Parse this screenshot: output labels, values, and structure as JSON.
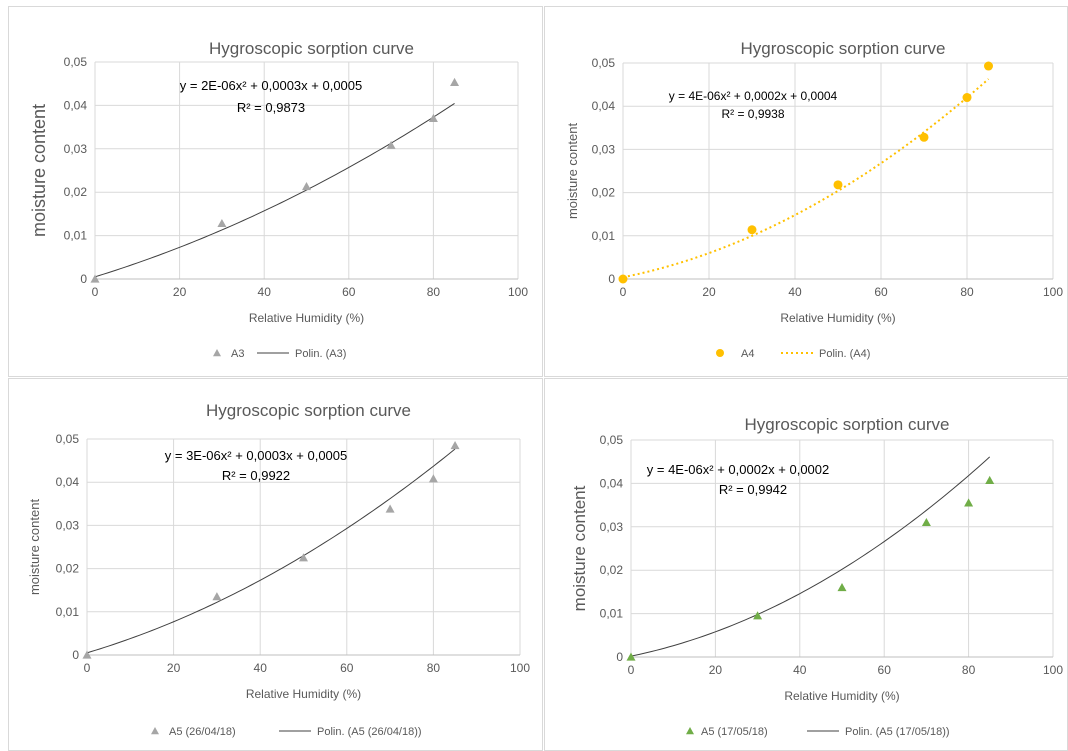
{
  "chart_data": [
    {
      "type": "scatter",
      "title": "Hygroscopic sorption curve",
      "xlabel": "Relative Humidity (%)",
      "ylabel": "moisture content",
      "xlim": [
        0,
        100
      ],
      "ylim": [
        0,
        0.05
      ],
      "x_ticks": [
        "0",
        "20",
        "40",
        "60",
        "80",
        "100"
      ],
      "y_ticks": [
        "0",
        "0,01",
        "0,02",
        "0,03",
        "0,04",
        "0,05"
      ],
      "grid": true,
      "legend_position": "bottom",
      "series": [
        {
          "name": "A3",
          "marker": "triangle",
          "color": "#a6a6a6",
          "x": [
            0,
            30,
            50,
            70,
            80,
            85
          ],
          "y": [
            0.0,
            0.0128,
            0.0213,
            0.0308,
            0.037,
            0.0453
          ]
        }
      ],
      "trendline": {
        "name": "Polin. (A3)",
        "style": "solid",
        "color": "#404040",
        "coefficients": [
          2e-06,
          0.0003,
          0.0005
        ],
        "equation": "y = 2E-06x² + 0,0003x + 0,0005",
        "r2": "R² = 0,9873"
      }
    },
    {
      "type": "scatter",
      "title": "Hygroscopic sorption curve",
      "xlabel": "Relative Humidity (%)",
      "ylabel": "moisture content",
      "xlim": [
        0,
        100
      ],
      "ylim": [
        0,
        0.05
      ],
      "x_ticks": [
        "0",
        "20",
        "40",
        "60",
        "80",
        "100"
      ],
      "y_ticks": [
        "0",
        "0,01",
        "0,02",
        "0,03",
        "0,04",
        "0,05"
      ],
      "grid": true,
      "legend_position": "bottom",
      "series": [
        {
          "name": "A4",
          "marker": "circle",
          "color": "#ffc000",
          "x": [
            0,
            30,
            50,
            70,
            80,
            85
          ],
          "y": [
            0.0,
            0.0114,
            0.0218,
            0.0328,
            0.042,
            0.0493
          ]
        }
      ],
      "trendline": {
        "name": "Polin. (A4)",
        "style": "dotted",
        "color": "#ffc000",
        "coefficients": [
          4e-06,
          0.0002,
          0.0004
        ],
        "equation": "y = 4E-06x² + 0,0002x + 0,0004",
        "r2": "R² = 0,9938"
      }
    },
    {
      "type": "scatter",
      "title": "Hygroscopic sorption curve",
      "xlabel": "Relative Humidity (%)",
      "ylabel": "moisture content",
      "xlim": [
        0,
        100
      ],
      "ylim": [
        0,
        0.05
      ],
      "x_ticks": [
        "0",
        "20",
        "40",
        "60",
        "80",
        "100"
      ],
      "y_ticks": [
        "0",
        "0,01",
        "0,02",
        "0,03",
        "0,04",
        "0,05"
      ],
      "grid": true,
      "legend_position": "bottom",
      "series": [
        {
          "name": "A5 (26/04/18)",
          "marker": "triangle",
          "color": "#a6a6a6",
          "x": [
            0,
            30,
            50,
            70,
            80,
            85
          ],
          "y": [
            0.0,
            0.0135,
            0.0225,
            0.0338,
            0.0408,
            0.0485
          ]
        }
      ],
      "trendline": {
        "name": "Polin. (A5 (26/04/18))",
        "style": "solid",
        "color": "#404040",
        "coefficients": [
          3e-06,
          0.0003,
          0.0005
        ],
        "equation": "y = 3E-06x² + 0,0003x + 0,0005",
        "r2": "R² = 0,9922"
      }
    },
    {
      "type": "scatter",
      "title": "Hygroscopic sorption curve",
      "xlabel": "Relative Humidity (%)",
      "ylabel": "moisture content",
      "xlim": [
        0,
        100
      ],
      "ylim": [
        0,
        0.05
      ],
      "x_ticks": [
        "0",
        "20",
        "40",
        "60",
        "80",
        "100"
      ],
      "y_ticks": [
        "0",
        "0,01",
        "0,02",
        "0,03",
        "0,04",
        "0,05"
      ],
      "grid": true,
      "legend_position": "bottom",
      "series": [
        {
          "name": "A5 (17/05/18)",
          "marker": "triangle",
          "color": "#70ad47",
          "x": [
            0,
            30,
            50,
            70,
            80,
            85
          ],
          "y": [
            0.0,
            0.0095,
            0.016,
            0.031,
            0.0355,
            0.0407
          ]
        }
      ],
      "trendline": {
        "name": "Polin. (A5 (17/05/18))",
        "style": "solid",
        "color": "#404040",
        "coefficients": [
          4e-06,
          0.0002,
          0.0002
        ],
        "equation": "y = 4E-06x² + 0,0002x + 0,0002",
        "r2": "R² = 0,9942"
      }
    }
  ]
}
